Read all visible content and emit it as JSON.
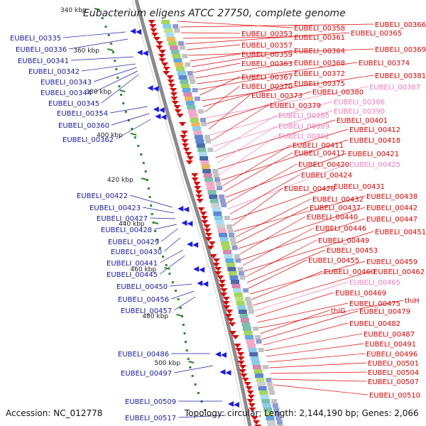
{
  "title": "Eubacterium eligens ATCC 27750, complete genome",
  "accession": "Accession: NC_012778",
  "summary": "Topology: circular; Length: 2,144,190 bp; Genes: 2,066",
  "colors": {
    "left_labels": "#1a1aa8",
    "right_labels": "#e00000",
    "right_labels_faded": "#f07ab8",
    "backbone": "#8a8a8a",
    "gc_dots": "#2b8a2b"
  },
  "ticks": [
    "340 kbp",
    "360 kbp",
    "380 kbp",
    "400 kbp",
    "420 kbp",
    "440 kbp",
    "460 kbp",
    "480 kbp",
    "500 kbp"
  ],
  "left_labels": [
    "EUBELI_00335",
    "EUBELI_00336",
    "EUBELI_00341",
    "EUBELI_00342",
    "EUBELI_00343",
    "EUBELI_00344",
    "EUBELI_00345",
    "EUBELI_00354",
    "EUBELI_00360",
    "EUBELI_00362",
    "EUBELI_00422",
    "EUBELI_00423",
    "EUBELI_00427",
    "EUBELI_00428",
    "EUBELI_00429",
    "EUBELI_00430",
    "EUBELI_00441",
    "EUBELI_00445",
    "EUBELI_00450",
    "EUBELI_00456",
    "EUBELI_00457",
    "EUBELI_00486",
    "EUBELI_00497",
    "EUBELI_00509",
    "EUBELI_00517"
  ],
  "right_labels": [
    {
      "text": "EUBELI_00358",
      "faded": false
    },
    {
      "text": "EUBELI_00366",
      "faded": false
    },
    {
      "text": "EUBELI_00353",
      "faded": false
    },
    {
      "text": "EUBELI_00361",
      "faded": false
    },
    {
      "text": "EUBELI_00365",
      "faded": false
    },
    {
      "text": "EUBELI_00357",
      "faded": false
    },
    {
      "text": "EUBELI_00369",
      "faded": false
    },
    {
      "text": "EUBELI_00359",
      "faded": false
    },
    {
      "text": "EUBELI_00364",
      "faded": false
    },
    {
      "text": "EUBELI_00363",
      "faded": false
    },
    {
      "text": "EUBELI_00368",
      "faded": false
    },
    {
      "text": "EUBELI_00374",
      "faded": false
    },
    {
      "text": "EUBELI_00372",
      "faded": false
    },
    {
      "text": "EUBELI_00367",
      "faded": false
    },
    {
      "text": "EUBELI_00381",
      "faded": false
    },
    {
      "text": "EUBELI_00375",
      "faded": false
    },
    {
      "text": "EUBELI_00370",
      "faded": false
    },
    {
      "text": "EUBELI_00387",
      "faded": true
    },
    {
      "text": "EUBELI_00380",
      "faded": false
    },
    {
      "text": "EUBELI_00373",
      "faded": false
    },
    {
      "text": "EUBELI_00386",
      "faded": true
    },
    {
      "text": "EUBELI_00379",
      "faded": false
    },
    {
      "text": "EUBELI_00390",
      "faded": true
    },
    {
      "text": "EUBELI_00385",
      "faded": true
    },
    {
      "text": "EUBELI_00401",
      "faded": false
    },
    {
      "text": "EUBELI_00389",
      "faded": true
    },
    {
      "text": "EUBELI_00412",
      "faded": false
    },
    {
      "text": "EUBELI_00402",
      "faded": true
    },
    {
      "text": "EUBELI_00418",
      "faded": false
    },
    {
      "text": "EUBELI_00411",
      "faded": false
    },
    {
      "text": "EUBELI_00417",
      "faded": false
    },
    {
      "text": "EUBELI_00421",
      "faded": false
    },
    {
      "text": "EUBELI_00420",
      "faded": false
    },
    {
      "text": "EUBELI_00425",
      "faded": true
    },
    {
      "text": "EUBELI_00424",
      "faded": false
    },
    {
      "text": "EUBELI_00431",
      "faded": false
    },
    {
      "text": "EUBELI_00426",
      "faded": false
    },
    {
      "text": "EUBELI_00438",
      "faded": false
    },
    {
      "text": "EUBELI_00432",
      "faded": false
    },
    {
      "text": "EUBELI_00437",
      "faded": false
    },
    {
      "text": "EUBELI_00442",
      "faded": false
    },
    {
      "text": "EUBELI_00440",
      "faded": false
    },
    {
      "text": "EUBELI_00447",
      "faded": false
    },
    {
      "text": "EUBELI_00446",
      "faded": false
    },
    {
      "text": "EUBELI_00451",
      "faded": false
    },
    {
      "text": "EUBELI_00449",
      "faded": false
    },
    {
      "text": "EUBELI_00453",
      "faded": false
    },
    {
      "text": "EUBELI_00455",
      "faded": false
    },
    {
      "text": "EUBELI_00459",
      "faded": false
    },
    {
      "text": "EUBELI_00460",
      "faded": false
    },
    {
      "text": "EUBELI_00462",
      "faded": false
    },
    {
      "text": "EUBELI_00465",
      "faded": true
    },
    {
      "text": "EUBELI_00469",
      "faded": false
    },
    {
      "text": "EUBELI_00475",
      "faded": false
    },
    {
      "text": "thiH",
      "faded": false
    },
    {
      "text": "thiG",
      "faded": false
    },
    {
      "text": "EUBELI_00479",
      "faded": false
    },
    {
      "text": "EUBELI_00482",
      "faded": false
    },
    {
      "text": "EUBELI_00487",
      "faded": false
    },
    {
      "text": "EUBELI_00491",
      "faded": false
    },
    {
      "text": "EUBELI_00496",
      "faded": false
    },
    {
      "text": "EUBELI_00501",
      "faded": false
    },
    {
      "text": "EUBELI_00504",
      "faded": false
    },
    {
      "text": "EUBELI_00507",
      "faded": false
    },
    {
      "text": "EUBELI_00510",
      "faded": false
    }
  ]
}
